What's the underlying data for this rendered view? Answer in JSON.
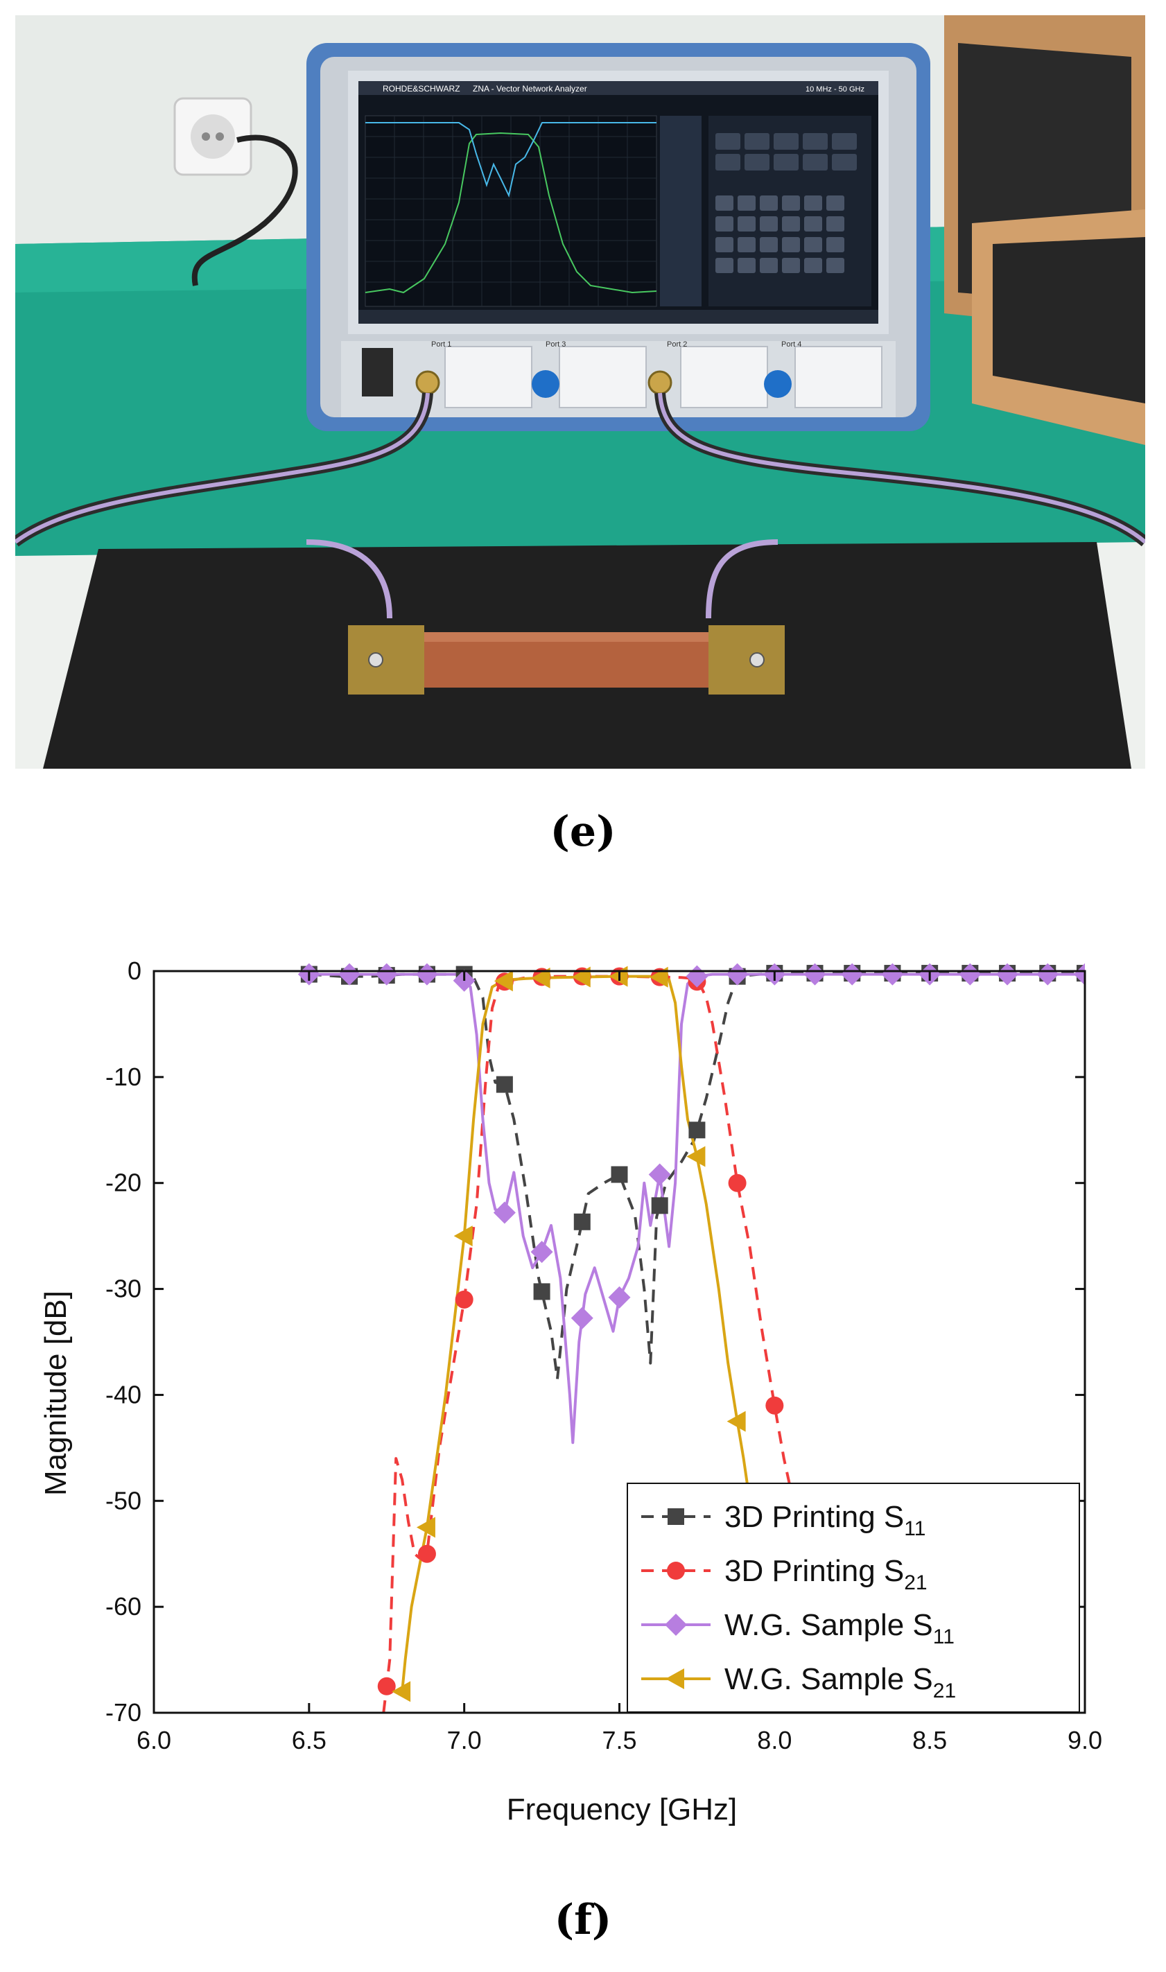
{
  "figure": {
    "label_top": "(e)",
    "label_bottom": "(f)",
    "photo": {
      "description_icon": "vna-measurement-photo",
      "instrument_brand": "ROHDE&SCHWARZ",
      "instrument_title": "ZNA - Vector Network Analyzer",
      "instrument_range": "10 MHz - 50 GHz",
      "port_labels": [
        "Port 1",
        "Port 3",
        "Port 2",
        "Port 4"
      ]
    }
  },
  "colors": {
    "s11_3d": "#444444",
    "s21_3d": "#f03c3c",
    "s11_wg": "#b77ee0",
    "s21_wg": "#d9a514"
  },
  "chart_data": {
    "type": "line",
    "xlabel": "Frequency [GHz]",
    "ylabel": "Magnitude [dB]",
    "xlim": [
      6.0,
      9.0
    ],
    "ylim": [
      -70,
      0
    ],
    "xticks": [
      "6.0",
      "6.5",
      "7.0",
      "7.5",
      "8.0",
      "8.5",
      "9.0"
    ],
    "yticks": [
      "0",
      "-10",
      "-20",
      "-30",
      "-40",
      "-50",
      "-60",
      "-70"
    ],
    "legend_position": "bottom-right",
    "series": [
      {
        "key": "s11_3d",
        "legend_main": "3D Printing S",
        "legend_sub": "11",
        "style": "dashed",
        "marker": "square",
        "x": [
          6.5,
          6.6,
          6.7,
          6.8,
          6.9,
          7.0,
          7.03,
          7.06,
          7.08,
          7.1,
          7.13,
          7.16,
          7.2,
          7.24,
          7.28,
          7.3,
          7.33,
          7.37,
          7.4,
          7.45,
          7.5,
          7.55,
          7.58,
          7.6,
          7.62,
          7.65,
          7.7,
          7.74,
          7.78,
          7.82,
          7.85,
          7.88,
          7.95,
          8.0,
          8.5,
          9.0
        ],
        "y": [
          -0.3,
          -0.5,
          -0.5,
          -0.3,
          -0.3,
          -0.3,
          -0.6,
          -2.5,
          -8,
          -10.5,
          -10.7,
          -14,
          -21,
          -29,
          -34,
          -38.5,
          -30,
          -25,
          -21,
          -20,
          -19.2,
          -23,
          -30,
          -37,
          -23.2,
          -20,
          -18,
          -16,
          -12,
          -7,
          -3,
          -0.5,
          -0.3,
          -0.2,
          -0.2,
          -0.2
        ],
        "marker_x": [
          6.5,
          6.63,
          6.75,
          6.88,
          7.0,
          7.13,
          7.25,
          7.38,
          7.5,
          7.63,
          7.75,
          7.88,
          8.0,
          8.13,
          8.25,
          8.38,
          8.5,
          8.63,
          8.75,
          8.88,
          9.0
        ]
      },
      {
        "key": "s21_3d",
        "legend_main": "3D Printing S",
        "legend_sub": "21",
        "style": "dashed",
        "marker": "circle",
        "x": [
          6.74,
          6.76,
          6.78,
          6.8,
          6.82,
          6.84,
          6.86,
          6.88,
          6.92,
          6.96,
          7.0,
          7.04,
          7.07,
          7.09,
          7.11,
          7.13,
          7.2,
          7.3,
          7.5,
          7.7,
          7.74,
          7.76,
          7.78,
          7.8,
          7.84,
          7.88,
          7.92,
          7.96,
          8.0,
          8.03,
          8.06
        ],
        "y": [
          -70,
          -65,
          -46,
          -48,
          -52,
          -55,
          -55.5,
          -55,
          -45,
          -38,
          -31,
          -22,
          -10,
          -3.5,
          -1.5,
          -1,
          -0.6,
          -0.5,
          -0.5,
          -0.6,
          -0.7,
          -1.3,
          -2.5,
          -5,
          -12,
          -20,
          -26,
          -34,
          -41,
          -46,
          -50
        ],
        "marker_x": [
          6.75,
          6.88,
          7.0,
          7.13,
          7.25,
          7.38,
          7.5,
          7.63,
          7.75,
          7.88,
          8.0
        ]
      },
      {
        "key": "s11_wg",
        "legend_main": "W.G. Sample S",
        "legend_sub": "11",
        "style": "solid",
        "marker": "diamond",
        "x": [
          6.5,
          6.6,
          6.7,
          6.8,
          6.9,
          6.98,
          7.02,
          7.04,
          7.06,
          7.08,
          7.1,
          7.13,
          7.16,
          7.19,
          7.22,
          7.25,
          7.28,
          7.31,
          7.34,
          7.35,
          7.37,
          7.39,
          7.42,
          7.45,
          7.48,
          7.5,
          7.53,
          7.56,
          7.58,
          7.6,
          7.63,
          7.66,
          7.68,
          7.7,
          7.72,
          7.75,
          7.8,
          8.0,
          8.5,
          9.0
        ],
        "y": [
          -0.3,
          -0.3,
          -0.3,
          -0.3,
          -0.3,
          -0.3,
          -1.5,
          -6,
          -14,
          -20,
          -22.5,
          -22.8,
          -19,
          -25,
          -28,
          -26.5,
          -24,
          -29,
          -40,
          -44.5,
          -35,
          -30.5,
          -28,
          -31,
          -34,
          -30.8,
          -29,
          -26,
          -20,
          -24,
          -19.2,
          -26,
          -20,
          -5,
          -1.2,
          -0.5,
          -0.3,
          -0.3,
          -0.3,
          -0.3
        ],
        "marker_x": [
          6.5,
          6.63,
          6.75,
          6.88,
          7.0,
          7.13,
          7.25,
          7.38,
          7.5,
          7.63,
          7.75,
          7.88,
          8.0,
          8.13,
          8.25,
          8.38,
          8.5,
          8.63,
          8.75,
          8.88,
          9.0
        ]
      },
      {
        "key": "s21_wg",
        "legend_main": "W.G. Sample S",
        "legend_sub": "21",
        "style": "solid",
        "marker": "triangle-left",
        "x": [
          6.8,
          6.81,
          6.83,
          6.88,
          6.94,
          7.0,
          7.03,
          7.06,
          7.09,
          7.12,
          7.15,
          7.2,
          7.3,
          7.5,
          7.62,
          7.66,
          7.68,
          7.7,
          7.72,
          7.75,
          7.78,
          7.82,
          7.85,
          7.88,
          7.9,
          7.92
        ],
        "y": [
          -68,
          -65,
          -60,
          -52.5,
          -40,
          -25,
          -14,
          -5,
          -1.5,
          -1,
          -0.8,
          -0.7,
          -0.6,
          -0.5,
          -0.5,
          -0.8,
          -3,
          -9,
          -14,
          -17.5,
          -22,
          -30,
          -37,
          -42.5,
          -46,
          -50
        ],
        "marker_x": [
          6.8,
          6.88,
          7.0,
          7.13,
          7.25,
          7.38,
          7.5,
          7.63,
          7.75,
          7.88
        ]
      }
    ]
  }
}
